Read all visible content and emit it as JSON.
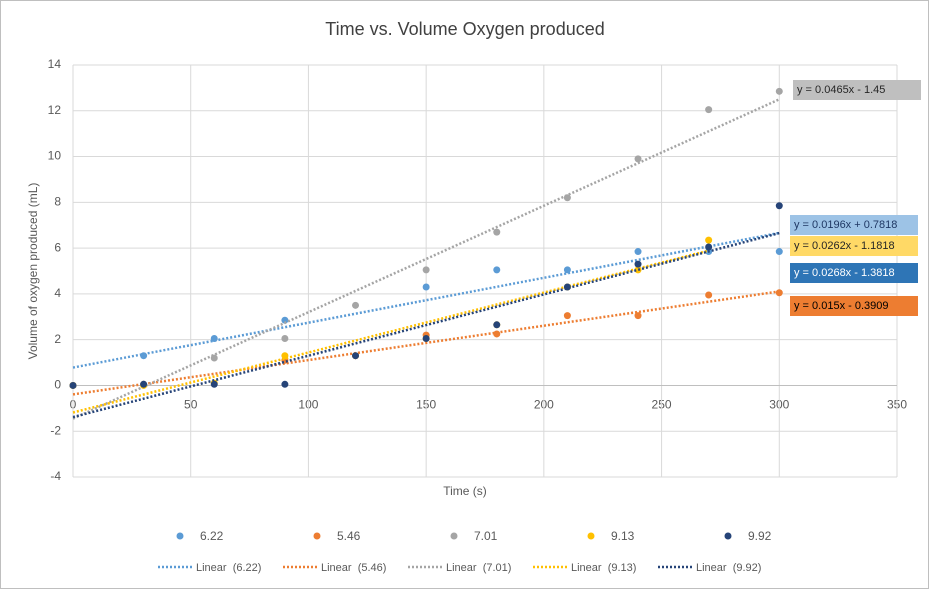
{
  "chart_data": {
    "type": "scatter",
    "title": "Time vs. Volume Oxygen produced",
    "x_label": "Time (s)",
    "y_label": "Volume of oxygen produced (mL)",
    "xlim": [
      0,
      350
    ],
    "xticks": [
      0,
      50,
      100,
      150,
      200,
      250,
      300,
      350
    ],
    "ylim": [
      -4,
      14
    ],
    "yticks": [
      -4,
      -2,
      0,
      2,
      4,
      6,
      8,
      10,
      12,
      14
    ],
    "grid": true,
    "series": [
      {
        "name": "6.22",
        "color": "#5b9bd5",
        "x": [
          0,
          30,
          60,
          90,
          150,
          180,
          210,
          240,
          270,
          300
        ],
        "values": [
          0,
          1.3,
          2.05,
          2.85,
          4.3,
          5.05,
          5.05,
          5.85,
          5.85,
          5.85
        ],
        "trendline": {
          "slope": 0.0196,
          "intercept": 0.7818,
          "label": "y = 0.0196x + 0.7818",
          "legend": "Linear  (6.22)"
        }
      },
      {
        "name": "5.46",
        "color": "#ed7d31",
        "x": [
          0,
          30,
          90,
          120,
          150,
          180,
          210,
          240,
          270,
          300
        ],
        "values": [
          0,
          0.05,
          1.1,
          1.3,
          2.2,
          2.25,
          3.05,
          3.05,
          3.95,
          4.05
        ],
        "trendline": {
          "slope": 0.015,
          "intercept": -0.3909,
          "label": "y = 0.015x - 0.3909",
          "legend": "Linear  (5.46)"
        }
      },
      {
        "name": "7.01",
        "color": "#a5a5a5",
        "x": [
          0,
          30,
          60,
          90,
          120,
          150,
          180,
          210,
          240,
          270,
          300
        ],
        "values": [
          0,
          0.05,
          1.2,
          2.05,
          3.5,
          5.05,
          6.7,
          8.2,
          9.9,
          12.05,
          12.85
        ],
        "trendline": {
          "slope": 0.0465,
          "intercept": -1.45,
          "label": "y = 0.0465x - 1.45",
          "legend": "Linear  (7.01)"
        }
      },
      {
        "name": "9.13",
        "color": "#ffc000",
        "x": [
          0,
          30,
          60,
          90,
          120,
          150,
          180,
          210,
          240,
          270
        ],
        "values": [
          0,
          0,
          0.1,
          1.3,
          1.3,
          2.05,
          2.65,
          4.3,
          5.05,
          6.35
        ],
        "trendline": {
          "slope": 0.0262,
          "intercept": -1.1818,
          "label": "y = 0.0262x - 1.1818",
          "legend": "Linear  (9.13)"
        }
      },
      {
        "name": "9.92",
        "color": "#264478",
        "x": [
          0,
          30,
          60,
          90,
          120,
          150,
          180,
          210,
          240,
          270,
          300
        ],
        "values": [
          0,
          0.05,
          0.05,
          0.05,
          1.3,
          2.05,
          2.65,
          4.3,
          5.3,
          6.05,
          7.85
        ],
        "trendline": {
          "slope": 0.0268,
          "intercept": -1.3818,
          "label": "y = 0.0268x - 1.3818",
          "legend": "Linear  (9.92)"
        }
      }
    ]
  }
}
